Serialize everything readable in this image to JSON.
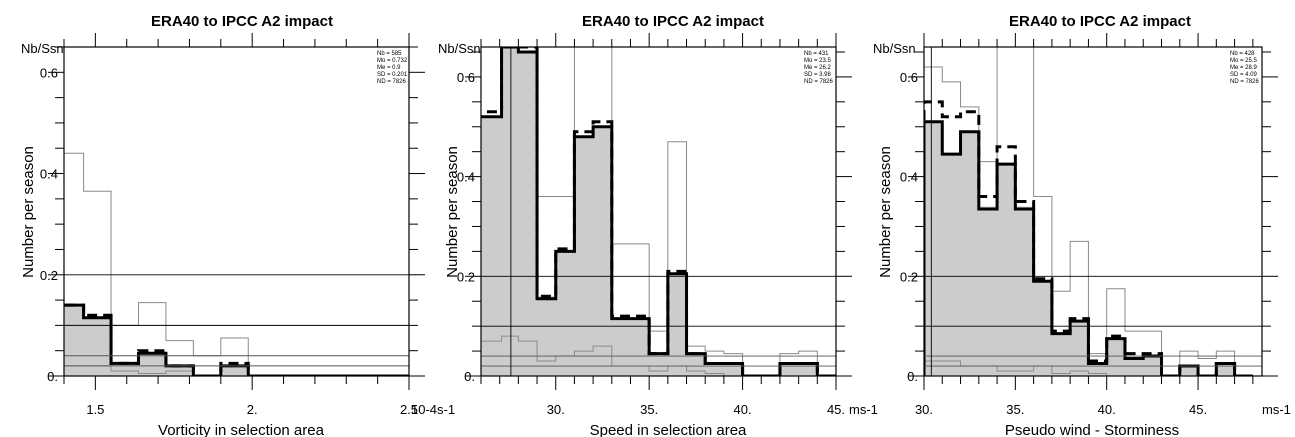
{
  "chart_data": [
    {
      "type": "histogram",
      "title": "ERA40 to IPCC A2 impact",
      "xlabel": "Vorticity in selection area",
      "ylabel": "Number per season",
      "y_unit_label": "Nb/Ssn",
      "x_unit_label": "10-4s-1",
      "xlim": [
        1.4,
        2.5
      ],
      "ylim": [
        0,
        0.65
      ],
      "xticks": [
        {
          "v": 1.5,
          "label": "1.5"
        },
        {
          "v": 2.0,
          "label": "2."
        },
        {
          "v": 2.5,
          "label": "2.5"
        }
      ],
      "yticks": [
        {
          "v": 0,
          "label": "0."
        },
        {
          "v": 0.2,
          "label": "0.2"
        },
        {
          "v": 0.4,
          "label": "0.4"
        },
        {
          "v": 0.6,
          "label": "0.6"
        }
      ],
      "stats": [
        "Nb = 585",
        "Mo = 0.732",
        "Me = 0.9",
        "SD = 0.201",
        "ND = 7826"
      ],
      "bin_edges": [
        1.375,
        1.4625,
        1.55,
        1.6375,
        1.725,
        1.8125,
        1.9,
        1.9875,
        2.075,
        2.1625,
        2.25,
        2.3375,
        2.425,
        2.5125
      ],
      "series": [
        {
          "style": "filled",
          "values": [
            0.14,
            0.115,
            0.025,
            0.045,
            0.02,
            0.0,
            0.02,
            0.0,
            0.0,
            0.0,
            0.0,
            0.0,
            0.0
          ]
        },
        {
          "style": "bold",
          "values": [
            0.14,
            0.115,
            0.025,
            0.045,
            0.02,
            0.0,
            0.02,
            0.0,
            0.0,
            0.0,
            0.0,
            0.0,
            0.0
          ]
        },
        {
          "style": "dashed",
          "values": [
            0.14,
            0.12,
            0.025,
            0.05,
            0.02,
            0.0,
            0.025,
            0.0,
            0.0,
            0.0,
            0.0,
            0.0,
            0.0
          ]
        },
        {
          "style": "thin",
          "values": [
            0.44,
            0.365,
            0.1,
            0.145,
            0.07,
            0.04,
            0.075,
            0.0,
            0.0,
            0.0,
            0.0,
            0.0,
            0.0
          ]
        },
        {
          "style": "lowthin",
          "values": [
            0.02,
            0.02,
            0.01,
            0.005,
            0.01,
            0.0,
            0.0,
            0.0,
            0.0,
            0.0,
            0.0,
            0.0,
            0.0
          ]
        }
      ],
      "hlines": [
        0.2,
        0.1,
        0.04,
        0.02
      ],
      "vlines": []
    },
    {
      "type": "histogram",
      "title": "ERA40 to IPCC A2 impact",
      "xlabel": "Speed in selection area",
      "ylabel": "Number per season",
      "y_unit_label": "Nb/Ssn",
      "x_unit_label": "ms-1",
      "xlim": [
        26,
        45
      ],
      "ylim": [
        0,
        0.66
      ],
      "xticks": [
        {
          "v": 30,
          "label": "30."
        },
        {
          "v": 35,
          "label": "35."
        },
        {
          "v": 40,
          "label": "40."
        },
        {
          "v": 45,
          "label": "45."
        }
      ],
      "yticks": [
        {
          "v": 0,
          "label": "0."
        },
        {
          "v": 0.2,
          "label": "0.2"
        },
        {
          "v": 0.4,
          "label": "0.4"
        },
        {
          "v": 0.6,
          "label": "0.6"
        }
      ],
      "stats": [
        "Nb = 431",
        "Mo = 23.5",
        "Me = 26.2",
        "SD = 3.98",
        "ND = 7826"
      ],
      "bin_edges": [
        25.9,
        27.1,
        28.0,
        29.0,
        30.0,
        31.0,
        32.0,
        33.0,
        34.0,
        35.0,
        36.0,
        37.0,
        38.0,
        39.0,
        40.0,
        41.0,
        42.0,
        43.0,
        44.0,
        45.0
      ],
      "series": [
        {
          "style": "filled",
          "values": [
            0.52,
            0.66,
            0.65,
            0.16,
            0.25,
            0.48,
            0.5,
            0.115,
            0.115,
            0.045,
            0.205,
            0.045,
            0.025,
            0.025,
            0.0,
            0.0,
            0.025,
            0.025,
            0.0
          ]
        },
        {
          "style": "bold",
          "values": [
            0.52,
            0.66,
            0.65,
            0.155,
            0.25,
            0.48,
            0.5,
            0.115,
            0.115,
            0.045,
            0.205,
            0.045,
            0.025,
            0.025,
            0.0,
            0.0,
            0.025,
            0.025,
            0.0
          ]
        },
        {
          "style": "dashed",
          "values": [
            0.53,
            0.66,
            0.66,
            0.16,
            0.255,
            0.49,
            0.51,
            0.12,
            0.12,
            0.045,
            0.21,
            0.045,
            0.025,
            0.025,
            0.0,
            0.0,
            0.025,
            0.025,
            0.0
          ]
        },
        {
          "style": "thin",
          "values": [
            0.66,
            0.66,
            0.66,
            0.36,
            0.36,
            0.66,
            0.66,
            0.265,
            0.265,
            0.09,
            0.47,
            0.06,
            0.05,
            0.045,
            0.0,
            0.0,
            0.045,
            0.05,
            0.0
          ]
        },
        {
          "style": "lowthin",
          "values": [
            0.07,
            0.08,
            0.07,
            0.03,
            0.04,
            0.05,
            0.06,
            0.02,
            0.02,
            0.01,
            0.02,
            0.01,
            0.005,
            0.0,
            0.0,
            0.0,
            0.0,
            0.0,
            0.0
          ]
        }
      ],
      "hlines": [
        0.2,
        0.1,
        0.04,
        0.02
      ],
      "vlines": [
        27.6
      ]
    },
    {
      "type": "histogram",
      "title": "ERA40 to IPCC A2 impact",
      "xlabel": "Pseudo wind - Storminess",
      "ylabel": "Number per season",
      "y_unit_label": "Nb/Ssn",
      "x_unit_label": "ms-1",
      "xlim": [
        30,
        48.5
      ],
      "ylim": [
        0,
        0.66
      ],
      "xticks": [
        {
          "v": 30,
          "label": "30."
        },
        {
          "v": 35,
          "label": "35."
        },
        {
          "v": 40,
          "label": "40."
        },
        {
          "v": 45,
          "label": "45."
        }
      ],
      "yticks": [
        {
          "v": 0,
          "label": "0."
        },
        {
          "v": 0.2,
          "label": "0.2"
        },
        {
          "v": 0.4,
          "label": "0.4"
        },
        {
          "v": 0.6,
          "label": "0.6"
        }
      ],
      "stats": [
        "Nb = 428",
        "Mo = 25.5",
        "Me = 28.9",
        "SD = 4.09",
        "ND = 7826"
      ],
      "bin_edges": [
        30.0,
        31.0,
        32.0,
        33.0,
        34.0,
        35.0,
        36.0,
        37.0,
        38.0,
        39.0,
        40.0,
        41.0,
        42.0,
        43.0,
        44.0,
        45.0,
        46.0,
        47.0,
        48.0
      ],
      "series": [
        {
          "style": "filled",
          "values": [
            0.51,
            0.445,
            0.49,
            0.34,
            0.425,
            0.34,
            0.19,
            0.085,
            0.11,
            0.025,
            0.075,
            0.035,
            0.04,
            0.0,
            0.02,
            0.0,
            0.025,
            0.0
          ]
        },
        {
          "style": "bold",
          "values": [
            0.51,
            0.445,
            0.49,
            0.335,
            0.425,
            0.335,
            0.19,
            0.085,
            0.11,
            0.025,
            0.075,
            0.035,
            0.04,
            0.0,
            0.02,
            0.0,
            0.025,
            0.0
          ]
        },
        {
          "style": "dashed",
          "values": [
            0.55,
            0.52,
            0.53,
            0.36,
            0.46,
            0.35,
            0.195,
            0.09,
            0.115,
            0.03,
            0.08,
            0.045,
            0.045,
            0.0,
            0.02,
            0.0,
            0.025,
            0.0
          ]
        },
        {
          "style": "thin",
          "values": [
            0.62,
            0.59,
            0.54,
            0.43,
            0.66,
            0.72,
            0.36,
            0.17,
            0.27,
            0.045,
            0.175,
            0.09,
            0.09,
            0.0,
            0.05,
            0.035,
            0.05,
            0.0
          ]
        },
        {
          "style": "lowthin",
          "values": [
            0.03,
            0.03,
            0.02,
            0.02,
            0.01,
            0.01,
            0.02,
            0.005,
            0.01,
            0.005,
            0.0,
            0.0,
            0.0,
            0.0,
            0.0,
            0.0,
            0.0,
            0.0
          ]
        }
      ],
      "hlines": [
        0.2,
        0.1,
        0.04,
        0.02
      ],
      "vlines": [
        30.4
      ]
    }
  ]
}
